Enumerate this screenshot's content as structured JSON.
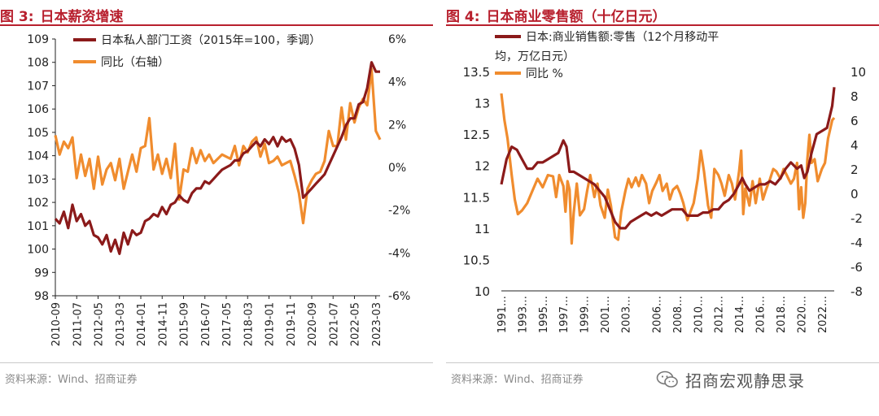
{
  "left": {
    "figure_number": "图 3:",
    "title": "日本薪资增速",
    "source": "资料来源：Wind、招商证券"
  },
  "right": {
    "figure_number": "图 4:",
    "title": "日本商业零售额（十亿日元）",
    "source": "资料来源：Wind、招商证券"
  },
  "watermark": {
    "text": "招商宏观静思录",
    "icon": "wechat-icon"
  },
  "colors": {
    "accent": "#b8202e",
    "dark_series": "#8b1a1a",
    "light_series": "#f08c2e"
  },
  "chart_data": [
    {
      "type": "line",
      "title": "日本薪资增速",
      "x_tick_labels": [
        "2010-09",
        "2011-07",
        "2012-05",
        "2013-03",
        "2014-01",
        "2014-11",
        "2015-09",
        "2016-07",
        "2017-05",
        "2018-03",
        "2019-01",
        "2019-11",
        "2020-09",
        "2021-07",
        "2022-05",
        "2023-03"
      ],
      "y_left": {
        "ticks": [
          "109",
          "108",
          "107",
          "106",
          "105",
          "104",
          "103",
          "102",
          "101",
          "100",
          "99",
          "98"
        ],
        "range": [
          98,
          109
        ]
      },
      "y_right": {
        "ticks": [
          "6%",
          "4%",
          "2%",
          "0%",
          "-2%",
          "-4%",
          "-6%"
        ],
        "range": [
          -6,
          6
        ],
        "unit": "%"
      },
      "grid": false,
      "legend_position": "top",
      "series": [
        {
          "name": "日本私人部门工资（2015年=100，季调）",
          "axis": "left",
          "x": [
            "2010-09",
            "2010-11",
            "2011-01",
            "2011-03",
            "2011-05",
            "2011-07",
            "2011-09",
            "2011-11",
            "2012-01",
            "2012-03",
            "2012-05",
            "2012-07",
            "2012-09",
            "2012-11",
            "2013-01",
            "2013-03",
            "2013-05",
            "2013-07",
            "2013-09",
            "2013-11",
            "2014-01",
            "2014-03",
            "2014-05",
            "2014-07",
            "2014-09",
            "2014-11",
            "2015-01",
            "2015-03",
            "2015-05",
            "2015-07",
            "2015-09",
            "2015-11",
            "2016-01",
            "2016-03",
            "2016-05",
            "2016-07",
            "2016-09",
            "2016-11",
            "2017-01",
            "2017-03",
            "2017-05",
            "2017-07",
            "2017-09",
            "2017-11",
            "2018-01",
            "2018-03",
            "2018-05",
            "2018-07",
            "2018-09",
            "2018-11",
            "2019-01",
            "2019-03",
            "2019-05",
            "2019-07",
            "2019-09",
            "2019-11",
            "2020-01",
            "2020-03",
            "2020-05",
            "2020-07",
            "2020-09",
            "2020-11",
            "2021-01",
            "2021-03",
            "2021-05",
            "2021-07",
            "2021-09",
            "2021-11",
            "2022-01",
            "2022-03",
            "2022-05",
            "2022-07",
            "2022-09",
            "2022-11",
            "2023-01",
            "2023-03",
            "2023-05"
          ],
          "values": [
            101.3,
            101.1,
            101.6,
            100.9,
            101.9,
            101.2,
            101.5,
            101.0,
            101.2,
            100.6,
            100.5,
            100.2,
            100.6,
            99.9,
            100.4,
            99.8,
            100.7,
            100.2,
            100.8,
            100.6,
            100.7,
            101.2,
            101.3,
            101.5,
            101.4,
            101.8,
            101.5,
            101.9,
            102.0,
            102.3,
            102.1,
            102.0,
            102.4,
            102.6,
            102.6,
            102.9,
            102.8,
            103.0,
            103.2,
            103.4,
            103.5,
            103.6,
            103.8,
            103.8,
            104.1,
            104.2,
            104.4,
            104.6,
            104.4,
            104.7,
            104.5,
            104.8,
            104.4,
            104.8,
            104.6,
            104.7,
            104.3,
            103.6,
            102.2,
            102.4,
            102.6,
            102.8,
            103.0,
            103.2,
            103.6,
            104.0,
            104.4,
            104.8,
            105.3,
            105.6,
            105.6,
            106.2,
            106.3,
            106.9,
            108.0,
            107.6,
            107.6
          ]
        },
        {
          "name": "同比（右轴）",
          "axis": "right",
          "x": [
            "2010-09",
            "2010-11",
            "2011-01",
            "2011-03",
            "2011-05",
            "2011-07",
            "2011-09",
            "2011-11",
            "2012-01",
            "2012-03",
            "2012-05",
            "2012-07",
            "2012-09",
            "2012-11",
            "2013-01",
            "2013-03",
            "2013-05",
            "2013-07",
            "2013-09",
            "2013-11",
            "2014-01",
            "2014-03",
            "2014-05",
            "2014-07",
            "2014-09",
            "2014-11",
            "2015-01",
            "2015-03",
            "2015-05",
            "2015-07",
            "2015-09",
            "2015-11",
            "2016-01",
            "2016-03",
            "2016-05",
            "2016-07",
            "2016-09",
            "2016-11",
            "2017-01",
            "2017-03",
            "2017-05",
            "2017-07",
            "2017-09",
            "2017-11",
            "2018-01",
            "2018-03",
            "2018-05",
            "2018-07",
            "2018-09",
            "2018-11",
            "2019-01",
            "2019-03",
            "2019-05",
            "2019-07",
            "2019-09",
            "2019-11",
            "2020-01",
            "2020-03",
            "2020-05",
            "2020-07",
            "2020-09",
            "2020-11",
            "2021-01",
            "2021-03",
            "2021-05",
            "2021-07",
            "2021-09",
            "2021-11",
            "2022-01",
            "2022-03",
            "2022-05",
            "2022-07",
            "2022-09",
            "2022-11",
            "2023-01",
            "2023-03",
            "2023-05"
          ],
          "values": [
            1.5,
            0.6,
            1.2,
            0.9,
            1.4,
            -0.5,
            0.6,
            -0.4,
            0.4,
            -1.0,
            0.5,
            -0.8,
            -0.1,
            0.2,
            -0.6,
            0.4,
            -1.0,
            -0.2,
            0.6,
            -0.2,
            0.9,
            1.0,
            2.3,
            -0.1,
            0.6,
            -0.3,
            0.4,
            -0.5,
            1.1,
            -1.5,
            -0.1,
            -0.2,
            0.9,
            0.2,
            0.8,
            0.3,
            0.6,
            0.2,
            0.4,
            0.6,
            0.5,
            0.4,
            1.0,
            0.1,
            1.0,
            0.7,
            1.2,
            1.4,
            0.5,
            1.1,
            0.2,
            0.3,
            0.5,
            0.1,
            0.2,
            0.3,
            -0.4,
            -1.2,
            -2.6,
            -1.0,
            -0.6,
            -0.3,
            -0.2,
            0.3,
            1.7,
            1.0,
            1.0,
            2.8,
            1.3,
            3.0,
            2.1,
            2.8,
            3.2,
            2.9,
            4.6,
            1.7,
            1.3
          ]
        }
      ]
    },
    {
      "type": "line",
      "title": "日本商业零售额（十亿日元）",
      "x_tick_labels": [
        "1991…",
        "1993…",
        "1995…",
        "1997…",
        "1999…",
        "2001…",
        "2003…",
        "2006…",
        "2008…",
        "2010…",
        "2012…",
        "2014…",
        "2016…",
        "2018…",
        "2020…",
        "2022…"
      ],
      "y_left": {
        "ticks": [
          "13.5",
          "13",
          "12.5",
          "12",
          "11.5",
          "11",
          "10.5",
          "10"
        ],
        "range": [
          10,
          13.5
        ]
      },
      "y_right": {
        "ticks": [
          "10",
          "8",
          "6",
          "4",
          "2",
          "0",
          "-2",
          "-4",
          "-6",
          "-8"
        ],
        "range": [
          -8,
          10
        ]
      },
      "grid": false,
      "legend_position": "top",
      "series": [
        {
          "name": "日本:商业销售额:零售（12个月移动平均，万亿日元）",
          "axis": "left",
          "x": [
            1991.0,
            1991.5,
            1992.0,
            1992.5,
            1993.0,
            1993.5,
            1994.0,
            1994.5,
            1995.0,
            1995.5,
            1996.0,
            1996.5,
            1997.0,
            1997.3,
            1997.6,
            1998.0,
            1998.5,
            1999.0,
            1999.5,
            2000.0,
            2000.5,
            2001.0,
            2001.5,
            2002.0,
            2002.5,
            2003.0,
            2003.5,
            2004.0,
            2004.5,
            2005.0,
            2005.5,
            2006.0,
            2006.5,
            2007.0,
            2007.5,
            2008.0,
            2008.5,
            2009.0,
            2009.5,
            2010.0,
            2010.5,
            2011.0,
            2011.5,
            2012.0,
            2012.5,
            2013.0,
            2013.5,
            2014.0,
            2014.3,
            2014.6,
            2015.0,
            2015.5,
            2016.0,
            2016.5,
            2017.0,
            2017.5,
            2018.0,
            2018.5,
            2019.0,
            2019.3,
            2019.6,
            2020.0,
            2020.3,
            2020.6,
            2021.0,
            2021.5,
            2022.0,
            2022.5,
            2023.0,
            2023.2
          ],
          "values": [
            11.7,
            12.1,
            12.3,
            12.25,
            12.1,
            11.95,
            11.95,
            12.05,
            12.05,
            12.1,
            12.15,
            12.2,
            12.4,
            12.3,
            11.9,
            11.9,
            11.85,
            11.8,
            11.75,
            11.7,
            11.6,
            11.5,
            11.3,
            11.1,
            11.0,
            11.0,
            11.1,
            11.15,
            11.2,
            11.25,
            11.2,
            11.25,
            11.2,
            11.25,
            11.3,
            11.3,
            11.3,
            11.2,
            11.2,
            11.2,
            11.25,
            11.25,
            11.3,
            11.3,
            11.4,
            11.45,
            11.55,
            11.7,
            11.8,
            11.7,
            11.6,
            11.65,
            11.7,
            11.7,
            11.75,
            11.7,
            11.8,
            11.95,
            12.05,
            12.0,
            11.95,
            12.0,
            11.8,
            11.9,
            12.2,
            12.5,
            12.55,
            12.6,
            12.95,
            13.25
          ]
        },
        {
          "name": "同比 %",
          "axis": "right",
          "x": [
            1991.0,
            1991.3,
            1991.6,
            1992.0,
            1992.3,
            1992.6,
            1993.0,
            1993.5,
            1994.0,
            1994.5,
            1995.0,
            1995.5,
            1996.0,
            1996.3,
            1996.6,
            1997.0,
            1997.2,
            1997.4,
            1997.6,
            1997.8,
            1998.0,
            1998.3,
            1998.6,
            1999.0,
            1999.3,
            1999.6,
            2000.0,
            2000.3,
            2000.6,
            2001.0,
            2001.3,
            2001.6,
            2002.0,
            2002.3,
            2002.6,
            2003.0,
            2003.3,
            2003.6,
            2004.0,
            2004.3,
            2004.6,
            2005.0,
            2005.3,
            2005.6,
            2006.0,
            2006.3,
            2006.6,
            2007.0,
            2007.3,
            2007.6,
            2008.0,
            2008.3,
            2008.6,
            2009.0,
            2009.3,
            2009.6,
            2010.0,
            2010.3,
            2010.6,
            2011.0,
            2011.3,
            2011.6,
            2012.0,
            2012.3,
            2012.6,
            2013.0,
            2013.3,
            2013.6,
            2014.0,
            2014.2,
            2014.4,
            2014.6,
            2015.0,
            2015.3,
            2015.6,
            2016.0,
            2016.3,
            2016.6,
            2017.0,
            2017.3,
            2017.6,
            2018.0,
            2018.3,
            2018.6,
            2019.0,
            2019.3,
            2019.6,
            2019.8,
            2020.0,
            2020.2,
            2020.4,
            2020.6,
            2020.8,
            2021.0,
            2021.3,
            2021.6,
            2022.0,
            2022.3,
            2022.6,
            2023.0,
            2023.2
          ],
          "values": [
            8.2,
            6.0,
            4.5,
            1.5,
            -0.5,
            -1.7,
            -1.4,
            -0.8,
            0.2,
            1.2,
            0.5,
            1.5,
            1.4,
            -0.3,
            1.5,
            0.6,
            -1.5,
            1.0,
            0.3,
            -4.1,
            -1.6,
            0.8,
            -1.8,
            -1.3,
            0.2,
            1.5,
            -0.3,
            0.8,
            -1.0,
            -2.0,
            0.3,
            -1.0,
            -3.6,
            -3.8,
            -1.5,
            0.2,
            1.2,
            0.5,
            1.3,
            0.6,
            1.5,
            0.8,
            -0.8,
            0.2,
            0.9,
            1.5,
            0.2,
            0.8,
            -0.5,
            0.3,
            0.6,
            0.0,
            -0.8,
            -2.2,
            -1.5,
            -0.8,
            1.2,
            3.5,
            1.8,
            -1.0,
            -2.0,
            2.0,
            1.5,
            0.8,
            -0.2,
            1.5,
            0.8,
            -0.5,
            1.8,
            3.5,
            -1.7,
            0.4,
            -1.0,
            1.0,
            -0.8,
            1.2,
            -0.5,
            0.3,
            1.2,
            2.0,
            1.8,
            1.2,
            2.0,
            1.5,
            0.8,
            1.2,
            2.5,
            -1.3,
            0.5,
            -2.0,
            -0.8,
            2.8,
            4.8,
            2.5,
            2.8,
            1.0,
            2.0,
            2.5,
            4.5,
            6.0,
            6.2
          ]
        }
      ]
    }
  ]
}
